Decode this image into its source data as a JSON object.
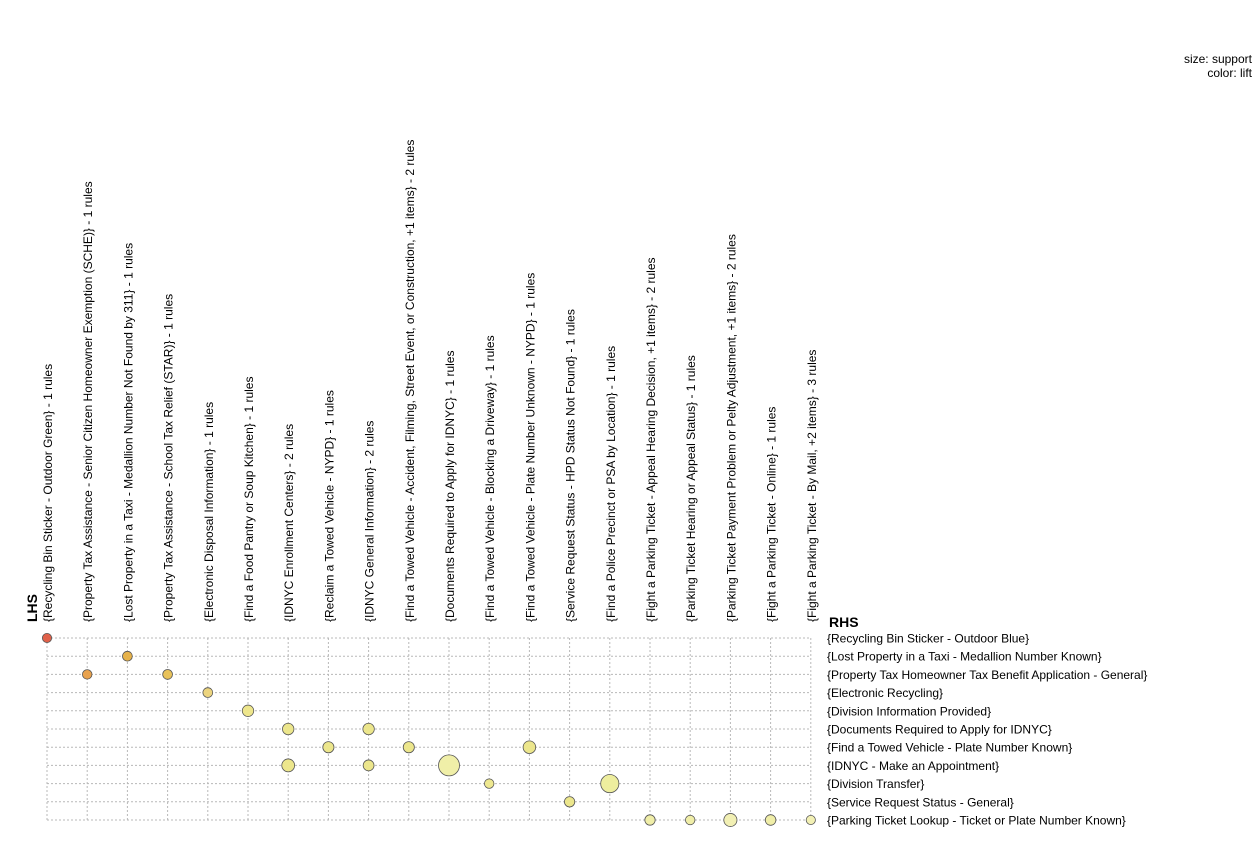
{
  "chart_data": {
    "type": "scatter",
    "title": "",
    "legend": {
      "size_label": "size: support",
      "color_label": "color: lift",
      "position": "top-right"
    },
    "lhs_title": "LHS",
    "rhs_title": "RHS",
    "grid": true,
    "lhs": [
      "{Recycling Bin Sticker - Outdoor Green} - 1 rules",
      "{Property Tax Assistance - Senior Citizen Homeowner Exemption (SCHE)} - 1 rules",
      "{Lost Property in a Taxi - Medallion Number Not Found by 311} - 1 rules",
      "{Property Tax Assistance - School Tax Relief (STAR)} - 1 rules",
      "{Electronic Disposal Information} - 1 rules",
      "{Find a Food Pantry or Soup Kitchen} - 1 rules",
      "{IDNYC Enrollment Centers} - 2 rules",
      "{Reclaim a Towed Vehicle - NYPD} - 1 rules",
      "{IDNYC General Information} - 2 rules",
      "{Find a Towed Vehicle - Accident, Filming, Street Event, or Construction, +1 items} - 2 rules",
      "{Documents Required to Apply for IDNYC} - 1 rules",
      "{Find a Towed Vehicle - Blocking a Driveway} - 1 rules",
      "{Find a Towed Vehicle - Plate Number Unknown - NYPD} - 1 rules",
      "{Service Request Status - HPD Status Not Found} - 1 rules",
      "{Find a Police Precinct or PSA by Location} - 1 rules",
      "{Fight a Parking Ticket - Appeal Hearing Decision, +1 items} - 2 rules",
      "{Parking Ticket Hearing or Appeal Status} - 1 rules",
      "{Parking Ticket Payment Problem or Pelty Adjustment, +1 items} - 2 rules",
      "{Fight a Parking Ticket - Online} - 1 rules",
      "{Fight a Parking Ticket - By Mail, +2 items} - 3 rules"
    ],
    "rhs": [
      "{Recycling Bin Sticker - Outdoor Blue}",
      "{Lost Property in a Taxi - Medallion Number Known}",
      "{Property Tax Homeowner Tax Benefit Application - General}",
      "{Electronic Recycling}",
      "{Division Information Provided}",
      "{Documents Required to Apply for IDNYC}",
      "{Find a Towed Vehicle - Plate Number Known}",
      "{IDNYC - Make an Appointment}",
      "{Division Transfer}",
      "{Service Request Status - General}",
      "{Parking Ticket Lookup - Ticket or Plate Number Known}"
    ],
    "points": [
      {
        "lhs": 0,
        "rhs": 0,
        "support": 0.08,
        "lift": 1.0,
        "color": "#e0614a"
      },
      {
        "lhs": 2,
        "rhs": 1,
        "support": 0.1,
        "lift": 0.75,
        "color": "#e6b24a"
      },
      {
        "lhs": 1,
        "rhs": 2,
        "support": 0.09,
        "lift": 0.78,
        "color": "#e8a24e"
      },
      {
        "lhs": 3,
        "rhs": 2,
        "support": 0.1,
        "lift": 0.72,
        "color": "#e8c25a"
      },
      {
        "lhs": 4,
        "rhs": 3,
        "support": 0.1,
        "lift": 0.6,
        "color": "#ecd47e"
      },
      {
        "lhs": 5,
        "rhs": 4,
        "support": 0.16,
        "lift": 0.45,
        "color": "#eee68c"
      },
      {
        "lhs": 6,
        "rhs": 5,
        "support": 0.16,
        "lift": 0.42,
        "color": "#ece68c"
      },
      {
        "lhs": 8,
        "rhs": 5,
        "support": 0.16,
        "lift": 0.42,
        "color": "#ece68c"
      },
      {
        "lhs": 7,
        "rhs": 6,
        "support": 0.15,
        "lift": 0.42,
        "color": "#ece68c"
      },
      {
        "lhs": 9,
        "rhs": 6,
        "support": 0.15,
        "lift": 0.42,
        "color": "#ece68c"
      },
      {
        "lhs": 12,
        "rhs": 6,
        "support": 0.2,
        "lift": 0.4,
        "color": "#ece68c"
      },
      {
        "lhs": 6,
        "rhs": 7,
        "support": 0.21,
        "lift": 0.4,
        "color": "#ece68c"
      },
      {
        "lhs": 8,
        "rhs": 7,
        "support": 0.14,
        "lift": 0.4,
        "color": "#ece68c"
      },
      {
        "lhs": 10,
        "rhs": 7,
        "support": 0.5,
        "lift": 0.32,
        "color": "#f0efa8"
      },
      {
        "lhs": 11,
        "rhs": 8,
        "support": 0.09,
        "lift": 0.42,
        "color": "#eee890"
      },
      {
        "lhs": 14,
        "rhs": 8,
        "support": 0.4,
        "lift": 0.35,
        "color": "#eeee9e"
      },
      {
        "lhs": 13,
        "rhs": 9,
        "support": 0.12,
        "lift": 0.4,
        "color": "#ece68c"
      },
      {
        "lhs": 15,
        "rhs": 10,
        "support": 0.12,
        "lift": 0.35,
        "color": "#f0eea8"
      },
      {
        "lhs": 16,
        "rhs": 10,
        "support": 0.09,
        "lift": 0.33,
        "color": "#f0eea8"
      },
      {
        "lhs": 17,
        "rhs": 10,
        "support": 0.22,
        "lift": 0.3,
        "color": "#f2f0b4"
      },
      {
        "lhs": 18,
        "rhs": 10,
        "support": 0.13,
        "lift": 0.33,
        "color": "#f0eea8"
      },
      {
        "lhs": 19,
        "rhs": 10,
        "support": 0.08,
        "lift": 0.3,
        "color": "#f2f0b4"
      }
    ]
  }
}
